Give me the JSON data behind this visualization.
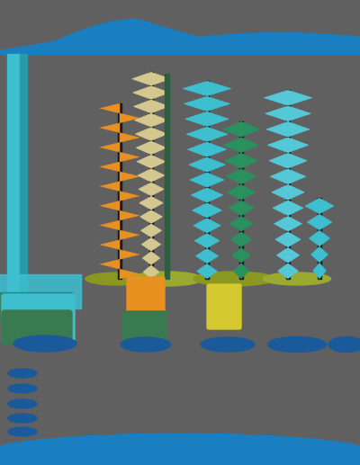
{
  "bg_color": "#606060",
  "top_band_color": "#1a7fc1",
  "bottom_band_color": "#1a7fc1",
  "left_stripe_color": "#3dbfcf",
  "left_stripe2_color": "#2a9aaa"
}
